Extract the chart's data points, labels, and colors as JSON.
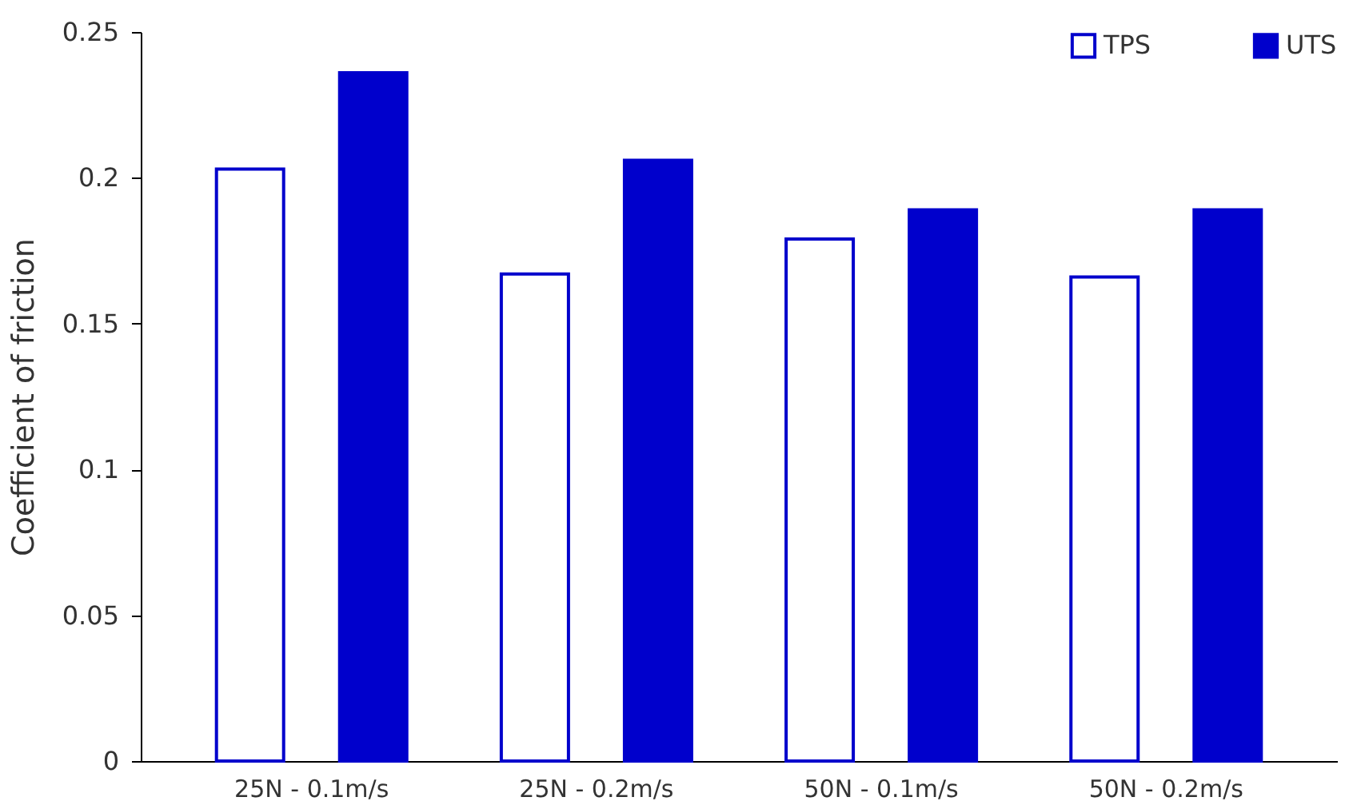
{
  "chart_data": {
    "type": "bar",
    "ylabel": "Coefficient of friction",
    "categories": [
      "25N - 0.1m/s",
      "25N - 0.2m/s",
      "50N - 0.1m/s",
      "50N - 0.2m/s"
    ],
    "series": [
      {
        "name": "TPS",
        "color": "#ffffff",
        "values": [
          0.203,
          0.167,
          0.179,
          0.166
        ]
      },
      {
        "name": "UTS",
        "color": "#0000cc",
        "values": [
          0.236,
          0.206,
          0.189,
          0.189
        ]
      }
    ],
    "ylim": [
      0,
      0.25
    ],
    "yticks": [
      0,
      0.05,
      0.1,
      0.15,
      0.2,
      0.25
    ],
    "grid": false,
    "legend": "top right"
  }
}
